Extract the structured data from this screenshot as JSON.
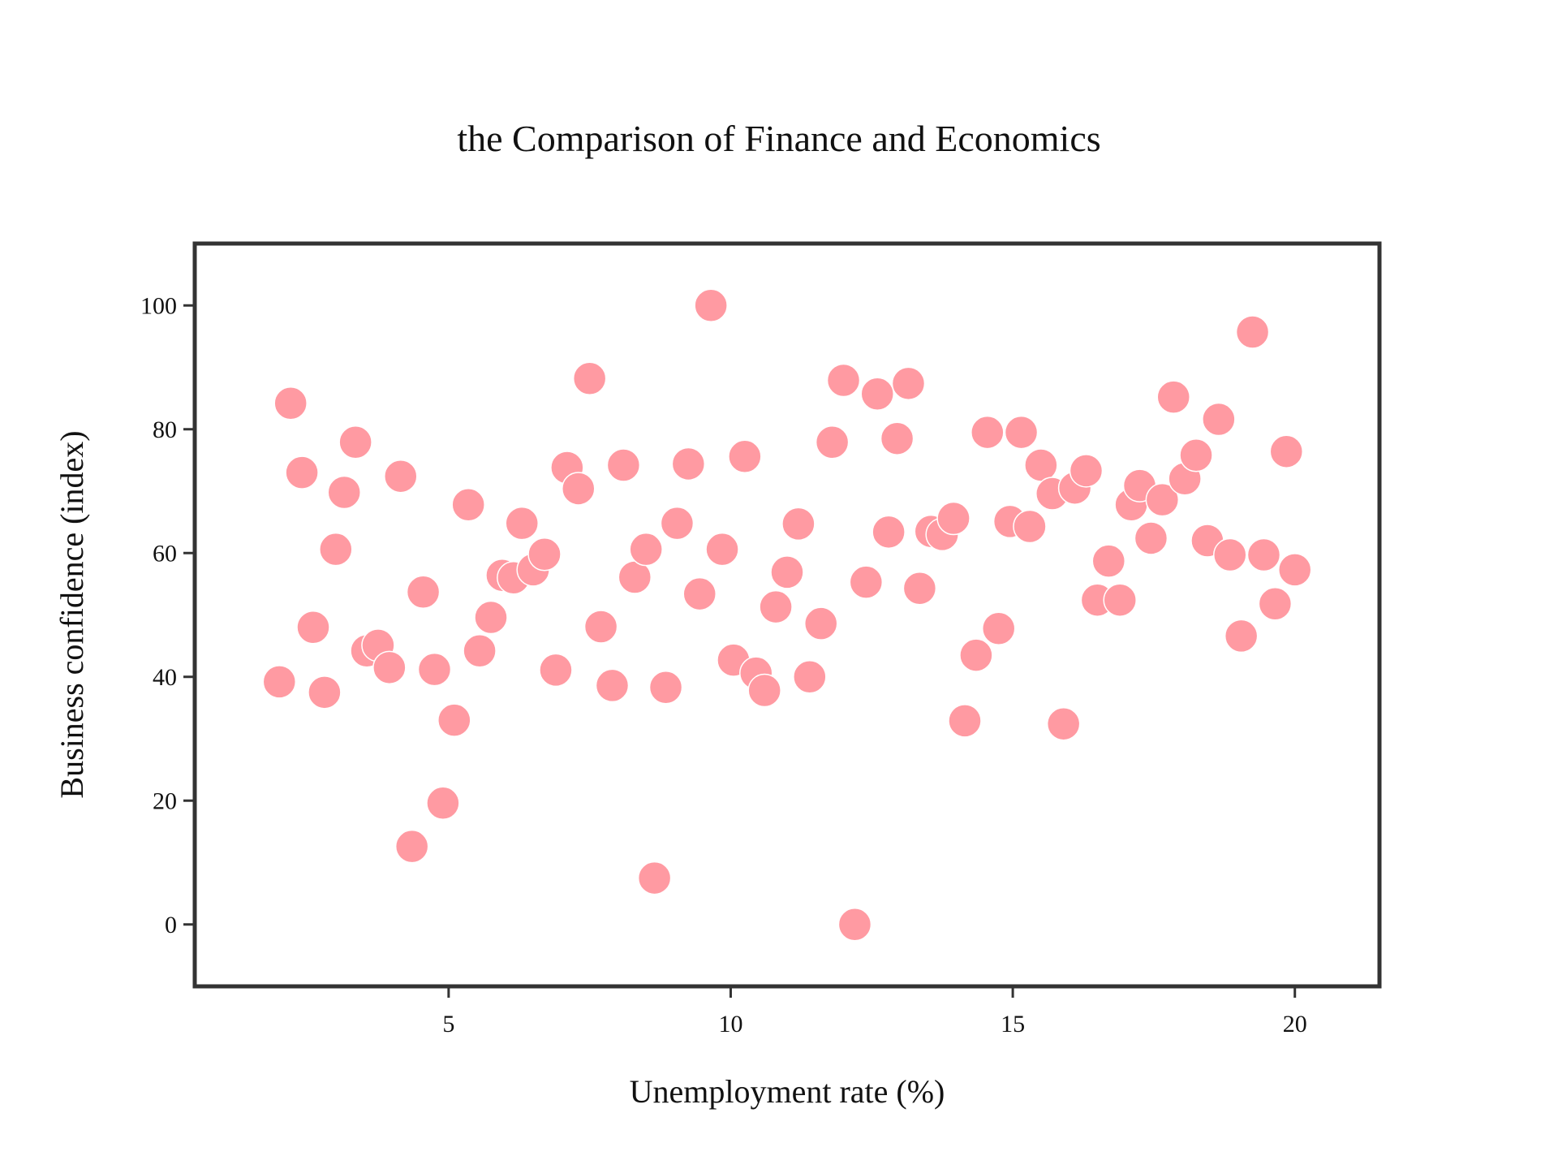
{
  "chart_data": {
    "type": "scatter",
    "title": "the Comparison of Finance and Economics",
    "xlabel": "Unemployment rate (%)",
    "ylabel": "Business confidence (index)",
    "xlim": [
      0.5,
      21.5
    ],
    "ylim": [
      -10,
      110
    ],
    "x_ticks": [
      5,
      10,
      15,
      20
    ],
    "y_ticks": [
      0,
      20,
      40,
      60,
      80,
      100
    ],
    "x_tick_labels": [
      "5",
      "10",
      "15",
      "20"
    ],
    "y_tick_labels": [
      "0",
      "20",
      "40",
      "60",
      "80",
      "100"
    ],
    "grid": false,
    "marker_color": "#ff9aa2",
    "series": [
      {
        "points": [
          [
            2.0,
            39.2
          ],
          [
            2.2,
            84.2
          ],
          [
            2.4,
            73.0
          ],
          [
            2.6,
            48.0
          ],
          [
            2.8,
            37.5
          ],
          [
            3.0,
            60.6
          ],
          [
            3.15,
            69.8
          ],
          [
            3.35,
            77.9
          ],
          [
            3.55,
            44.2
          ],
          [
            3.75,
            45.1
          ],
          [
            3.95,
            41.5
          ],
          [
            4.15,
            72.4
          ],
          [
            4.35,
            12.6
          ],
          [
            4.55,
            53.7
          ],
          [
            4.75,
            41.2
          ],
          [
            4.9,
            19.6
          ],
          [
            5.1,
            33.0
          ],
          [
            5.35,
            67.8
          ],
          [
            5.55,
            44.2
          ],
          [
            5.75,
            49.6
          ],
          [
            5.95,
            56.4
          ],
          [
            6.15,
            56.0
          ],
          [
            6.3,
            64.8
          ],
          [
            6.5,
            57.3
          ],
          [
            6.7,
            59.8
          ],
          [
            6.9,
            41.1
          ],
          [
            7.1,
            73.8
          ],
          [
            7.3,
            70.4
          ],
          [
            7.5,
            88.2
          ],
          [
            7.7,
            48.1
          ],
          [
            7.9,
            38.6
          ],
          [
            8.1,
            74.2
          ],
          [
            8.3,
            56.1
          ],
          [
            8.5,
            60.6
          ],
          [
            8.65,
            7.5
          ],
          [
            8.85,
            38.3
          ],
          [
            9.05,
            64.8
          ],
          [
            9.25,
            74.4
          ],
          [
            9.45,
            53.4
          ],
          [
            9.65,
            100.0
          ],
          [
            9.85,
            60.6
          ],
          [
            10.05,
            42.7
          ],
          [
            10.25,
            75.6
          ],
          [
            10.45,
            40.6
          ],
          [
            10.6,
            37.8
          ],
          [
            10.8,
            51.3
          ],
          [
            11.0,
            56.9
          ],
          [
            11.2,
            64.7
          ],
          [
            11.4,
            40.0
          ],
          [
            11.6,
            48.6
          ],
          [
            11.8,
            77.9
          ],
          [
            12.0,
            87.9
          ],
          [
            12.2,
            0.0
          ],
          [
            12.4,
            55.3
          ],
          [
            12.6,
            85.7
          ],
          [
            12.8,
            63.4
          ],
          [
            12.95,
            78.5
          ],
          [
            13.15,
            87.4
          ],
          [
            13.35,
            54.3
          ],
          [
            13.55,
            63.5
          ],
          [
            13.75,
            63.0
          ],
          [
            13.95,
            65.6
          ],
          [
            14.15,
            32.9
          ],
          [
            14.35,
            43.5
          ],
          [
            14.55,
            79.5
          ],
          [
            14.75,
            47.8
          ],
          [
            14.95,
            65.1
          ],
          [
            15.15,
            79.5
          ],
          [
            15.3,
            64.3
          ],
          [
            15.5,
            74.2
          ],
          [
            15.7,
            69.6
          ],
          [
            15.9,
            32.4
          ],
          [
            16.1,
            70.5
          ],
          [
            16.3,
            73.3
          ],
          [
            16.5,
            52.4
          ],
          [
            16.7,
            58.7
          ],
          [
            16.9,
            52.4
          ],
          [
            17.1,
            67.8
          ],
          [
            17.25,
            70.9
          ],
          [
            17.45,
            62.4
          ],
          [
            17.65,
            68.6
          ],
          [
            17.85,
            85.2
          ],
          [
            18.05,
            72.0
          ],
          [
            18.25,
            75.8
          ],
          [
            18.45,
            62.0
          ],
          [
            18.65,
            81.6
          ],
          [
            18.85,
            59.7
          ],
          [
            19.05,
            46.6
          ],
          [
            19.25,
            95.7
          ],
          [
            19.45,
            59.7
          ],
          [
            19.65,
            51.8
          ],
          [
            19.85,
            76.4
          ],
          [
            20.0,
            57.3
          ]
        ]
      }
    ]
  }
}
